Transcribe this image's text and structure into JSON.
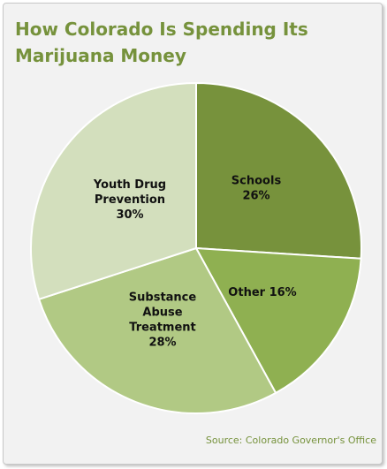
{
  "title_line1": "How Colorado Is Spending Its",
  "title_line2": "Marijuana Money",
  "source": "Source:  Colorado Governor's Office",
  "colors": {
    "title": "#76923c",
    "schools": "#77923c",
    "other": "#8fb051",
    "substance": "#b1c984",
    "youth": "#d3dfbd",
    "background": "#f2f2f2"
  },
  "chart_data": {
    "type": "pie",
    "title": "How Colorado Is Spending Its Marijuana Money",
    "slices": [
      {
        "label_lines": [
          "Schools",
          "26%"
        ],
        "value": 26,
        "color": "#77923c"
      },
      {
        "label_lines": [
          "Other 16%"
        ],
        "value": 16,
        "color": "#8fb051"
      },
      {
        "label_lines": [
          "Substance",
          "Abuse",
          "Treatment",
          "28%"
        ],
        "value": 28,
        "color": "#b1c984"
      },
      {
        "label_lines": [
          "Youth Drug",
          "Prevention",
          "30%"
        ],
        "value": 30,
        "color": "#d3dfbd"
      }
    ],
    "start_angle": "12 o'clock, clockwise",
    "legend": "none"
  }
}
